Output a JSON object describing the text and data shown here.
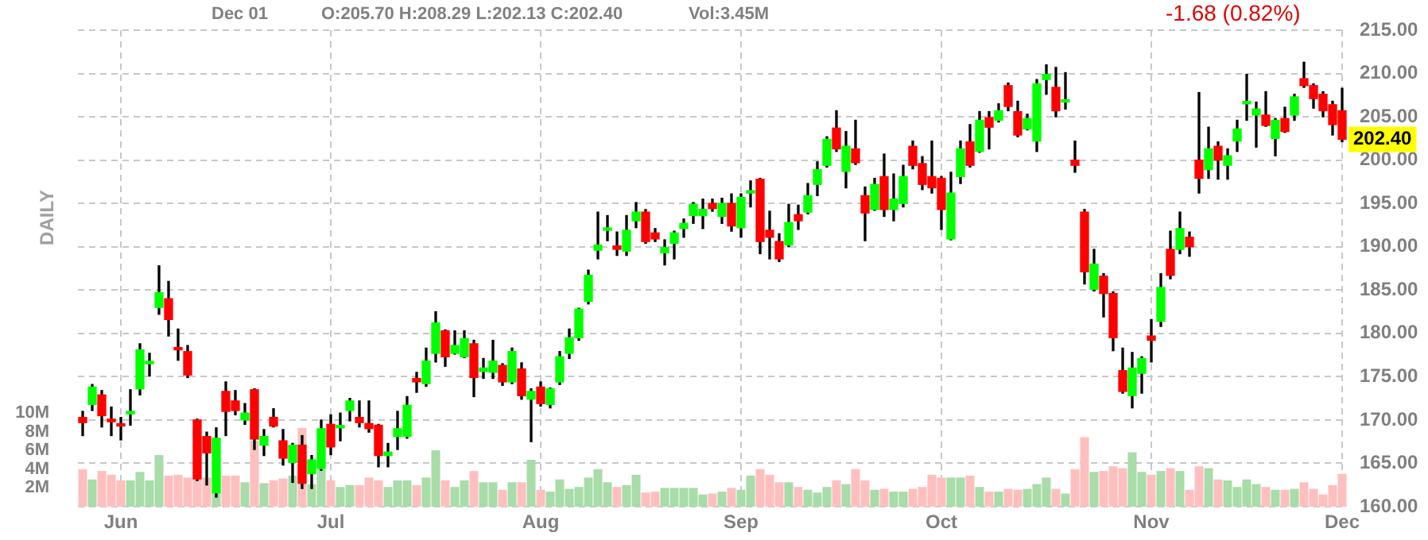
{
  "chart_data": {
    "type": "candlestick",
    "categories": [
      null,
      null,
      null,
      null,
      "Jun",
      null,
      null,
      null,
      null,
      null,
      null,
      null,
      null,
      null,
      null,
      null,
      null,
      null,
      null,
      null,
      null,
      null,
      null,
      null,
      null,
      null,
      "Jul",
      null,
      null,
      null,
      null,
      null,
      null,
      null,
      null,
      null,
      null,
      null,
      null,
      null,
      null,
      null,
      null,
      null,
      null,
      null,
      null,
      null,
      "Aug",
      null,
      null,
      null,
      null,
      null,
      null,
      null,
      null,
      null,
      null,
      null,
      null,
      null,
      null,
      null,
      null,
      null,
      null,
      null,
      null,
      "Sep",
      null,
      null,
      null,
      null,
      null,
      null,
      null,
      null,
      null,
      null,
      null,
      null,
      null,
      null,
      null,
      null,
      null,
      null,
      null,
      null,
      "Oct",
      null,
      null,
      null,
      null,
      null,
      null,
      null,
      null,
      null,
      null,
      null,
      null,
      null,
      null,
      null,
      null,
      null,
      null,
      null,
      null,
      null,
      "Nov",
      null,
      null,
      null,
      null,
      null,
      null,
      null,
      null,
      null,
      null,
      null,
      null,
      null,
      null,
      null,
      null,
      null,
      null,
      null,
      "Dec"
    ],
    "series": [
      {
        "ohlc": [
          [
            170.3,
            171.0,
            168.2,
            169.7
          ],
          [
            171.8,
            174.1,
            171.1,
            173.8
          ],
          [
            172.9,
            173.4,
            169.2,
            170.5
          ],
          [
            170.1,
            171.5,
            168.2,
            169.8
          ],
          [
            169.5,
            170.3,
            167.7,
            169.3
          ],
          [
            170.7,
            173.5,
            169.4,
            171.0
          ],
          [
            173.6,
            178.8,
            172.9,
            178.1
          ],
          [
            176.5,
            177.7,
            175.1,
            176.6
          ],
          [
            183.0,
            187.8,
            182.2,
            184.7
          ],
          [
            184.0,
            186.0,
            179.7,
            181.6
          ],
          [
            178.2,
            180.5,
            176.9,
            178.1
          ],
          [
            177.9,
            178.6,
            174.9,
            175.2
          ],
          [
            170.0,
            170.1,
            163.0,
            163.2
          ],
          [
            168.1,
            168.6,
            162.5,
            166.2
          ],
          [
            161.6,
            169.1,
            161.1,
            167.9
          ],
          [
            173.3,
            174.4,
            168.2,
            171.0
          ],
          [
            172.2,
            173.4,
            170.6,
            171.1
          ],
          [
            170.0,
            171.9,
            169.5,
            170.8
          ],
          [
            173.5,
            173.6,
            166.6,
            167.8
          ],
          [
            167.1,
            168.9,
            165.9,
            168.1
          ],
          [
            170.3,
            171.3,
            169.2,
            169.3
          ],
          [
            167.6,
            168.9,
            164.8,
            165.6
          ],
          [
            165.1,
            167.3,
            162.8,
            167.1
          ],
          [
            167.1,
            168.2,
            162.1,
            162.7
          ],
          [
            163.8,
            165.9,
            162.1,
            165.4
          ],
          [
            164.4,
            170.0,
            164.2,
            169.0
          ],
          [
            169.5,
            170.6,
            166.0,
            166.9
          ],
          [
            169.1,
            170.8,
            167.6,
            169.2
          ],
          [
            171.1,
            172.5,
            169.9,
            172.2
          ],
          [
            170.3,
            172.2,
            169.2,
            169.7
          ],
          [
            169.6,
            172.2,
            168.6,
            169.0
          ],
          [
            169.4,
            169.5,
            164.6,
            165.9
          ],
          [
            165.9,
            167.3,
            164.6,
            166.3
          ],
          [
            168.1,
            171.0,
            166.6,
            169.0
          ],
          [
            168.1,
            172.7,
            167.9,
            171.7
          ],
          [
            174.8,
            175.5,
            173.2,
            174.4
          ],
          [
            174.2,
            178.3,
            173.9,
            176.8
          ],
          [
            177.7,
            182.5,
            176.7,
            181.2
          ],
          [
            180.3,
            180.4,
            176.2,
            177.3
          ],
          [
            177.7,
            180.3,
            177.6,
            178.6
          ],
          [
            177.3,
            180.3,
            177.2,
            179.4
          ],
          [
            178.8,
            179.2,
            172.7,
            174.9
          ],
          [
            175.6,
            177.1,
            174.8,
            176.0
          ],
          [
            175.5,
            179.2,
            174.8,
            176.8
          ],
          [
            176.3,
            176.5,
            174.0,
            174.4
          ],
          [
            174.4,
            178.3,
            174.2,
            177.9
          ],
          [
            175.9,
            176.6,
            172.4,
            172.8
          ],
          [
            172.4,
            173.6,
            167.5,
            173.3
          ],
          [
            173.8,
            174.4,
            171.6,
            171.9
          ],
          [
            171.8,
            173.7,
            171.4,
            173.6
          ],
          [
            174.4,
            177.9,
            174.1,
            177.3
          ],
          [
            177.7,
            180.5,
            177.1,
            179.5
          ],
          [
            179.5,
            182.9,
            179.2,
            182.8
          ],
          [
            183.7,
            187.3,
            183.4,
            186.7
          ],
          [
            189.6,
            194.0,
            188.6,
            190.2
          ],
          [
            191.9,
            193.6,
            190.7,
            192.0
          ],
          [
            190.1,
            191.7,
            189.0,
            189.7
          ],
          [
            189.5,
            193.6,
            189.0,
            191.9
          ],
          [
            193.0,
            195.1,
            192.2,
            194.0
          ],
          [
            194.0,
            194.3,
            190.4,
            190.6
          ],
          [
            191.6,
            192.1,
            190.6,
            190.9
          ],
          [
            189.3,
            190.8,
            187.9,
            189.9
          ],
          [
            190.4,
            191.8,
            188.6,
            191.6
          ],
          [
            192.1,
            193.2,
            191.1,
            192.7
          ],
          [
            193.6,
            195.1,
            192.7,
            194.9
          ],
          [
            193.6,
            195.5,
            192.1,
            194.3
          ],
          [
            195.0,
            195.5,
            194.1,
            194.4
          ],
          [
            193.5,
            195.6,
            192.7,
            195.0
          ],
          [
            195.0,
            196.1,
            191.8,
            192.4
          ],
          [
            192.2,
            196.1,
            191.1,
            195.7
          ],
          [
            196.2,
            197.6,
            194.6,
            196.3
          ],
          [
            197.8,
            197.9,
            189.2,
            190.6
          ],
          [
            191.9,
            194.1,
            188.6,
            191.1
          ],
          [
            190.6,
            191.5,
            188.3,
            188.6
          ],
          [
            190.2,
            194.9,
            190.0,
            192.8
          ],
          [
            193.7,
            194.8,
            192.0,
            193.0
          ],
          [
            194.0,
            197.3,
            193.8,
            195.9
          ],
          [
            197.2,
            199.8,
            195.9,
            198.9
          ],
          [
            199.4,
            202.7,
            199.2,
            202.4
          ],
          [
            203.7,
            205.7,
            201.0,
            201.3
          ],
          [
            198.7,
            203.3,
            196.8,
            201.6
          ],
          [
            201.3,
            204.6,
            199.5,
            199.7
          ],
          [
            195.9,
            196.9,
            190.7,
            193.9
          ],
          [
            194.3,
            197.9,
            194.2,
            197.2
          ],
          [
            198.1,
            200.7,
            193.5,
            194.3
          ],
          [
            194.3,
            198.4,
            193.0,
            195.5
          ],
          [
            195.0,
            199.4,
            194.6,
            198.1
          ],
          [
            201.6,
            202.2,
            199.0,
            199.4
          ],
          [
            199.6,
            200.4,
            196.6,
            197.2
          ],
          [
            198.1,
            202.2,
            196.2,
            196.8
          ],
          [
            197.9,
            198.1,
            192.0,
            194.3
          ],
          [
            190.9,
            198.6,
            190.8,
            196.2
          ],
          [
            198.1,
            202.2,
            197.3,
            201.3
          ],
          [
            202.1,
            204.1,
            199.2,
            199.4
          ],
          [
            201.0,
            205.6,
            200.9,
            204.6
          ],
          [
            204.9,
            205.6,
            201.3,
            203.8
          ],
          [
            204.6,
            206.5,
            204.4,
            205.7
          ],
          [
            208.6,
            208.9,
            205.7,
            206.2
          ],
          [
            205.6,
            206.8,
            202.7,
            202.9
          ],
          [
            203.6,
            205.3,
            203.5,
            204.8
          ],
          [
            202.2,
            209.3,
            201.0,
            208.8
          ],
          [
            209.3,
            211.0,
            207.6,
            209.9
          ],
          [
            208.4,
            210.7,
            205.0,
            205.7
          ],
          [
            206.7,
            210.1,
            205.9,
            206.8
          ],
          [
            200.0,
            202.2,
            198.6,
            199.4
          ],
          [
            194.0,
            194.3,
            185.7,
            187.1
          ],
          [
            185.1,
            189.7,
            184.9,
            188.0
          ],
          [
            186.6,
            186.9,
            181.9,
            184.6
          ],
          [
            184.6,
            184.8,
            178.0,
            179.5
          ],
          [
            175.7,
            178.3,
            173.1,
            173.3
          ],
          [
            172.8,
            177.8,
            171.4,
            176.0
          ],
          [
            175.4,
            177.3,
            173.1,
            177.1
          ],
          [
            179.7,
            181.6,
            176.7,
            179.2
          ],
          [
            181.4,
            186.9,
            180.8,
            185.3
          ],
          [
            189.7,
            191.8,
            186.3,
            186.7
          ],
          [
            189.7,
            194.0,
            189.2,
            192.1
          ],
          [
            191.1,
            191.7,
            188.9,
            190.0
          ],
          [
            200.0,
            207.8,
            196.2,
            197.9
          ],
          [
            198.9,
            203.8,
            197.9,
            201.3
          ],
          [
            201.6,
            202.1,
            197.8,
            200.0
          ],
          [
            199.4,
            201.3,
            197.8,
            200.5
          ],
          [
            202.2,
            204.6,
            201.0,
            203.6
          ],
          [
            206.5,
            209.9,
            204.6,
            206.6
          ],
          [
            205.2,
            206.7,
            201.5,
            205.9
          ],
          [
            205.2,
            207.9,
            203.9,
            204.0
          ],
          [
            202.5,
            204.8,
            200.5,
            204.6
          ],
          [
            204.8,
            206.1,
            203.2,
            203.3
          ],
          [
            205.2,
            207.6,
            204.6,
            207.3
          ],
          [
            209.4,
            211.3,
            208.4,
            208.6
          ],
          [
            208.6,
            208.8,
            206.0,
            207.1
          ],
          [
            207.6,
            207.9,
            205.0,
            205.7
          ],
          [
            206.4,
            206.8,
            202.9,
            204.1
          ],
          [
            205.7,
            208.29,
            202.13,
            202.4
          ]
        ],
        "colors": [
          "#ff0000",
          "#00ff00",
          "#ff0000",
          "#ff0000",
          "#ff0000",
          "#00ff00",
          "#00ff00",
          "#00ff00",
          "#00ff00",
          "#ff0000",
          "#ff0000",
          "#ff0000",
          "#ff0000",
          "#ff0000",
          "#00ff00",
          "#ff0000",
          "#ff0000",
          "#00ff00",
          "#ff0000",
          "#00ff00",
          "#ff0000",
          "#ff0000",
          "#00ff00",
          "#ff0000",
          "#00ff00",
          "#00ff00",
          "#ff0000",
          "#00ff00",
          "#00ff00",
          "#ff0000",
          "#ff0000",
          "#ff0000",
          "#00ff00",
          "#00ff00",
          "#00ff00",
          "#ff0000",
          "#00ff00",
          "#00ff00",
          "#ff0000",
          "#00ff00",
          "#00ff00",
          "#ff0000",
          "#00ff00",
          "#00ff00",
          "#ff0000",
          "#00ff00",
          "#ff0000",
          "#00ff00",
          "#ff0000",
          "#00ff00",
          "#00ff00",
          "#00ff00",
          "#00ff00",
          "#00ff00",
          "#00ff00",
          "#00ff00",
          "#ff0000",
          "#00ff00",
          "#00ff00",
          "#ff0000",
          "#ff0000",
          "#00ff00",
          "#00ff00",
          "#00ff00",
          "#00ff00",
          "#00ff00",
          "#ff0000",
          "#00ff00",
          "#ff0000",
          "#00ff00",
          "#00ff00",
          "#ff0000",
          "#ff0000",
          "#ff0000",
          "#00ff00",
          "#ff0000",
          "#00ff00",
          "#00ff00",
          "#00ff00",
          "#ff0000",
          "#00ff00",
          "#ff0000",
          "#ff0000",
          "#00ff00",
          "#ff0000",
          "#00ff00",
          "#00ff00",
          "#ff0000",
          "#ff0000",
          "#ff0000",
          "#ff0000",
          "#00ff00",
          "#00ff00",
          "#ff0000",
          "#00ff00",
          "#ff0000",
          "#00ff00",
          "#ff0000",
          "#ff0000",
          "#00ff00",
          "#00ff00",
          "#00ff00",
          "#ff0000",
          "#00ff00",
          "#ff0000",
          "#ff0000",
          "#00ff00",
          "#ff0000",
          "#ff0000",
          "#ff0000",
          "#00ff00",
          "#00ff00",
          "#ff0000",
          "#00ff00",
          "#ff0000",
          "#00ff00",
          "#ff0000",
          "#ff0000",
          "#00ff00",
          "#ff0000",
          "#00ff00",
          "#00ff00",
          "#00ff00",
          "#00ff00",
          "#ff0000",
          "#00ff00",
          "#ff0000",
          "#00ff00",
          "#ff0000",
          "#ff0000",
          "#ff0000",
          "#ff0000",
          "#ff0000"
        ]
      },
      {
        "type": "bar",
        "axis": "y2",
        "values": [
          4.0,
          2.9,
          3.8,
          3.4,
          2.8,
          2.8,
          3.7,
          2.8,
          5.5,
          3.3,
          3.4,
          3.1,
          3.0,
          3.1,
          1.6,
          3.3,
          3.3,
          2.6,
          7.0,
          2.5,
          2.8,
          3.0,
          3.3,
          8.4,
          2.4,
          4.0,
          2.8,
          2.1,
          2.3,
          2.3,
          3.1,
          2.8,
          2.1,
          2.8,
          2.8,
          2.3,
          3.1,
          6.0,
          2.8,
          2.1,
          2.8,
          3.8,
          2.6,
          2.6,
          1.8,
          2.6,
          2.6,
          5.0,
          1.8,
          1.6,
          2.9,
          1.9,
          2.1,
          3.1,
          4.0,
          2.6,
          2.1,
          2.3,
          3.4,
          1.5,
          1.6,
          2.0,
          2.0,
          2.0,
          2.0,
          1.3,
          1.4,
          1.6,
          2.0,
          1.8,
          3.3,
          4.0,
          3.4,
          2.6,
          2.6,
          2.1,
          1.8,
          1.5,
          2.1,
          2.8,
          2.4,
          4.0,
          2.8,
          1.8,
          1.9,
          1.6,
          1.6,
          1.9,
          2.1,
          3.4,
          3.1,
          3.1,
          3.1,
          3.3,
          2.1,
          1.6,
          1.6,
          1.9,
          1.8,
          1.9,
          2.4,
          3.1,
          1.9,
          1.4,
          4.0,
          7.4,
          3.7,
          3.8,
          4.3,
          4.1,
          5.8,
          3.7,
          3.4,
          3.8,
          4.1,
          3.8,
          1.8,
          4.3,
          4.1,
          2.9,
          2.8,
          2.1,
          2.9,
          2.4,
          2.1,
          1.8,
          1.8,
          1.9,
          2.6,
          1.9,
          1.3,
          2.3,
          3.5
        ],
        "colors": [
          "#ffbfbf",
          "#a8dca8",
          "#ffbfbf",
          "#ffbfbf",
          "#ffbfbf",
          "#a8dca8",
          "#a8dca8",
          "#a8dca8",
          "#a8dca8",
          "#ffbfbf",
          "#ffbfbf",
          "#ffbfbf",
          "#ffbfbf",
          "#ffbfbf",
          "#a8dca8",
          "#ffbfbf",
          "#ffbfbf",
          "#a8dca8",
          "#ffbfbf",
          "#a8dca8",
          "#ffbfbf",
          "#ffbfbf",
          "#a8dca8",
          "#ffbfbf",
          "#a8dca8",
          "#a8dca8",
          "#ffbfbf",
          "#a8dca8",
          "#a8dca8",
          "#ffbfbf",
          "#ffbfbf",
          "#ffbfbf",
          "#a8dca8",
          "#a8dca8",
          "#a8dca8",
          "#ffbfbf",
          "#a8dca8",
          "#a8dca8",
          "#ffbfbf",
          "#a8dca8",
          "#a8dca8",
          "#ffbfbf",
          "#a8dca8",
          "#a8dca8",
          "#ffbfbf",
          "#a8dca8",
          "#ffbfbf",
          "#a8dca8",
          "#ffbfbf",
          "#a8dca8",
          "#a8dca8",
          "#a8dca8",
          "#a8dca8",
          "#a8dca8",
          "#a8dca8",
          "#a8dca8",
          "#ffbfbf",
          "#a8dca8",
          "#a8dca8",
          "#ffbfbf",
          "#ffbfbf",
          "#a8dca8",
          "#a8dca8",
          "#a8dca8",
          "#a8dca8",
          "#a8dca8",
          "#ffbfbf",
          "#a8dca8",
          "#ffbfbf",
          "#a8dca8",
          "#a8dca8",
          "#ffbfbf",
          "#ffbfbf",
          "#ffbfbf",
          "#a8dca8",
          "#ffbfbf",
          "#a8dca8",
          "#a8dca8",
          "#a8dca8",
          "#ffbfbf",
          "#a8dca8",
          "#ffbfbf",
          "#ffbfbf",
          "#a8dca8",
          "#ffbfbf",
          "#a8dca8",
          "#a8dca8",
          "#ffbfbf",
          "#ffbfbf",
          "#ffbfbf",
          "#ffbfbf",
          "#a8dca8",
          "#a8dca8",
          "#ffbfbf",
          "#a8dca8",
          "#ffbfbf",
          "#a8dca8",
          "#ffbfbf",
          "#ffbfbf",
          "#a8dca8",
          "#a8dca8",
          "#a8dca8",
          "#ffbfbf",
          "#a8dca8",
          "#ffbfbf",
          "#ffbfbf",
          "#a8dca8",
          "#ffbfbf",
          "#ffbfbf",
          "#ffbfbf",
          "#a8dca8",
          "#a8dca8",
          "#ffbfbf",
          "#a8dca8",
          "#ffbfbf",
          "#a8dca8",
          "#ffbfbf",
          "#ffbfbf",
          "#a8dca8",
          "#ffbfbf",
          "#a8dca8",
          "#a8dca8",
          "#a8dca8",
          "#a8dca8",
          "#ffbfbf",
          "#a8dca8",
          "#ffbfbf",
          "#a8dca8",
          "#ffbfbf",
          "#ffbfbf",
          "#ffbfbf",
          "#ffbfbf",
          "#ffbfbf"
        ]
      }
    ],
    "ylim": [
      160,
      215
    ],
    "yticks": [
      {
        "value": 160,
        "label": "160.00"
      },
      {
        "value": 165,
        "label": "165.00"
      },
      {
        "value": 170,
        "label": "170.00"
      },
      {
        "value": 175,
        "label": "175.00"
      },
      {
        "value": 180,
        "label": "180.00"
      },
      {
        "value": 185,
        "label": "185.00"
      },
      {
        "value": 190,
        "label": "190.00"
      },
      {
        "value": 195,
        "label": "195.00"
      },
      {
        "value": 200,
        "label": "200.00"
      },
      {
        "value": 205,
        "label": "205.00"
      },
      {
        "value": 210,
        "label": "210.00"
      },
      {
        "value": 215,
        "label": "215.00"
      }
    ],
    "y2lim": [
      0,
      50.8
    ],
    "y2ticks": [
      {
        "value": 2,
        "label": "2M"
      },
      {
        "value": 4,
        "label": "4M"
      },
      {
        "value": 6,
        "label": "6M"
      },
      {
        "value": 8,
        "label": "8M"
      },
      {
        "value": 10,
        "label": "10M"
      }
    ],
    "grid": true,
    "annotations": [
      "Dec 01",
      "O:205.70 H:208.29 L:202.13 C:202.40",
      "Vol:3.45M",
      "-1.68 (0.82%)",
      "DAILY",
      {
        "text": "202.40",
        "y": 202.4
      }
    ]
  }
}
